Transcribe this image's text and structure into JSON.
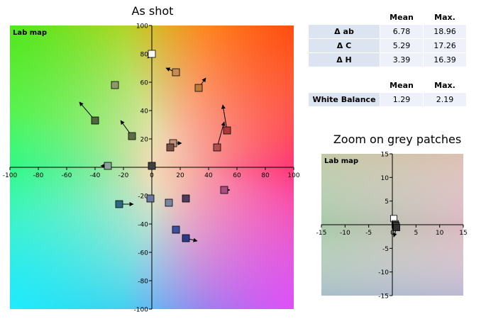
{
  "main_title": "As shot",
  "zoom_title": "Zoom on grey patches",
  "table1": {
    "headers": [
      "",
      "Mean",
      "Max."
    ],
    "rows": [
      {
        "label": "Δ ab",
        "mean": "6.78",
        "max": "18.96"
      },
      {
        "label": "Δ C",
        "mean": "5.29",
        "max": "17.26"
      },
      {
        "label": "Δ H",
        "mean": "3.39",
        "max": "16.39"
      }
    ]
  },
  "table2": {
    "headers": [
      "",
      "Mean",
      "Max."
    ],
    "rows": [
      {
        "label": "White Balance",
        "mean": "1.29",
        "max": "2.19"
      }
    ]
  },
  "chart_data": [
    {
      "type": "scatter",
      "title": "As shot",
      "plot_label": "Lab map",
      "xlim": [
        -100,
        100
      ],
      "ylim": [
        -100,
        100
      ],
      "x_ticks": [
        -100,
        -80,
        -60,
        -40,
        -20,
        0,
        20,
        40,
        60,
        80,
        100
      ],
      "y_ticks": [
        -100,
        -80,
        -60,
        -40,
        -20,
        0,
        20,
        40,
        60,
        80,
        100
      ],
      "points": [
        {
          "x": 0,
          "y": 80,
          "color": "#f7f7f3",
          "arrow_to": [
            -3,
            77
          ]
        },
        {
          "x": 17,
          "y": 67,
          "color": "#c58a55",
          "arrow_to": [
            10,
            70
          ]
        },
        {
          "x": -26,
          "y": 58,
          "color": "#8a9a68",
          "arrow_to": [
            -26,
            58
          ]
        },
        {
          "x": 33,
          "y": 56,
          "color": "#c07a3a",
          "arrow_to": [
            38,
            63
          ]
        },
        {
          "x": -40,
          "y": 33,
          "color": "#4e6a3c",
          "arrow_to": [
            -51,
            46
          ]
        },
        {
          "x": 53,
          "y": 26,
          "color": "#b03838",
          "arrow_to": [
            50,
            44
          ]
        },
        {
          "x": -14,
          "y": 22,
          "color": "#5c6e46",
          "arrow_to": [
            -22,
            33
          ]
        },
        {
          "x": 46,
          "y": 14,
          "color": "#b24e4e",
          "arrow_to": [
            51,
            32
          ]
        },
        {
          "x": 15,
          "y": 17,
          "color": "#c0907a",
          "arrow_to": [
            21,
            17
          ]
        },
        {
          "x": 13,
          "y": 14,
          "color": "#7a5042",
          "arrow_to": [
            13,
            14
          ]
        },
        {
          "x": -31,
          "y": 1,
          "color": "#8aa29a",
          "arrow_to": [
            -36,
            1
          ]
        },
        {
          "x": 0,
          "y": 1,
          "color": "#404040",
          "arrow_to": [
            0,
            1
          ]
        },
        {
          "x": 51,
          "y": -16,
          "color": "#a84e80",
          "arrow_to": [
            55,
            -16
          ]
        },
        {
          "x": -1,
          "y": -22,
          "color": "#6a78a0",
          "arrow_to": [
            -1,
            -22
          ]
        },
        {
          "x": 24,
          "y": -22,
          "color": "#503a5e",
          "arrow_to": [
            24,
            -22
          ]
        },
        {
          "x": 12,
          "y": -25,
          "color": "#7a84a0",
          "arrow_to": [
            12,
            -25
          ]
        },
        {
          "x": -23,
          "y": -26,
          "color": "#2a6a80",
          "arrow_to": [
            -13,
            -26
          ]
        },
        {
          "x": 17,
          "y": -44,
          "color": "#4050a0",
          "arrow_to": [
            17,
            -44
          ]
        },
        {
          "x": 24,
          "y": -50,
          "color": "#2a3a8a",
          "arrow_to": [
            32,
            -52
          ]
        }
      ]
    },
    {
      "type": "scatter",
      "title": "Zoom on grey patches",
      "plot_label": "Lab map",
      "xlim": [
        -15,
        15
      ],
      "ylim": [
        -15,
        15
      ],
      "x_ticks": [
        -15,
        -10,
        -5,
        0,
        5,
        10,
        15
      ],
      "y_ticks": [
        -15,
        -10,
        -5,
        0,
        5,
        10,
        15
      ],
      "points": [
        {
          "x": 0.3,
          "y": 1.3,
          "color": "#ffffff",
          "arrow_to": [
            0.3,
            1.3
          ]
        },
        {
          "x": 0.6,
          "y": 0.2,
          "color": "#d8d8d8",
          "arrow_to": [
            0.6,
            0.2
          ]
        },
        {
          "x": 0.6,
          "y": 0.0,
          "color": "#a8a8a8",
          "arrow_to": [
            0.6,
            0.0
          ]
        },
        {
          "x": 0.7,
          "y": -0.1,
          "color": "#7a7a7a",
          "arrow_to": [
            0.7,
            -0.1
          ]
        },
        {
          "x": 0.8,
          "y": -0.3,
          "color": "#555555",
          "arrow_to": [
            0.8,
            -0.3
          ]
        },
        {
          "x": 0.9,
          "y": -0.6,
          "color": "#303030",
          "arrow_to": [
            0.3,
            -2.6
          ]
        }
      ]
    }
  ]
}
